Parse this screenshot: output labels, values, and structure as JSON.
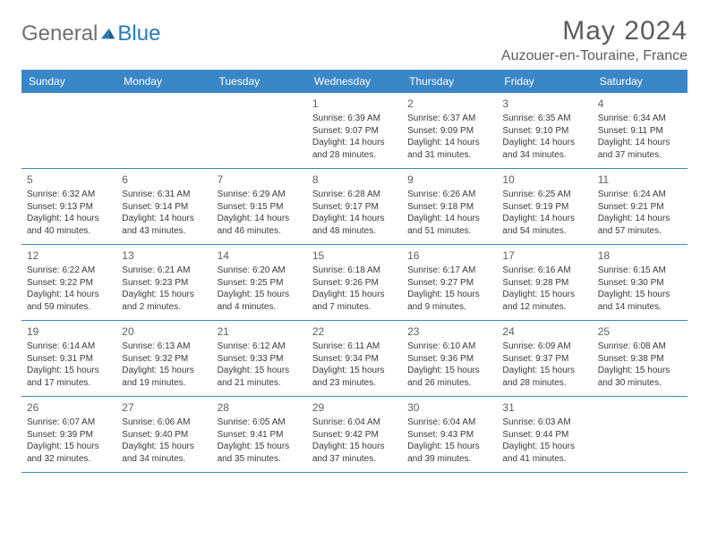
{
  "brand": {
    "part1": "General",
    "part2": "Blue"
  },
  "title": "May 2024",
  "location": "Auzouer-en-Touraine, France",
  "colors": {
    "header_bg": "#3a87c8",
    "header_text": "#ffffff",
    "border": "#3a87c8",
    "text": "#3a3a3a",
    "muted": "#606060",
    "brand_gray": "#6f6f6f",
    "brand_blue": "#2a7ab9",
    "background": "#ffffff"
  },
  "typography": {
    "title_fontsize": 30,
    "location_fontsize": 16,
    "dow_fontsize": 12,
    "daynum_fontsize": 12,
    "body_fontsize": 10
  },
  "days_of_week": [
    "Sunday",
    "Monday",
    "Tuesday",
    "Wednesday",
    "Thursday",
    "Friday",
    "Saturday"
  ],
  "weeks": [
    [
      {
        "n": "",
        "sr": "",
        "ss": "",
        "dl": ""
      },
      {
        "n": "",
        "sr": "",
        "ss": "",
        "dl": ""
      },
      {
        "n": "",
        "sr": "",
        "ss": "",
        "dl": ""
      },
      {
        "n": "1",
        "sr": "Sunrise: 6:39 AM",
        "ss": "Sunset: 9:07 PM",
        "dl": "Daylight: 14 hours and 28 minutes."
      },
      {
        "n": "2",
        "sr": "Sunrise: 6:37 AM",
        "ss": "Sunset: 9:09 PM",
        "dl": "Daylight: 14 hours and 31 minutes."
      },
      {
        "n": "3",
        "sr": "Sunrise: 6:35 AM",
        "ss": "Sunset: 9:10 PM",
        "dl": "Daylight: 14 hours and 34 minutes."
      },
      {
        "n": "4",
        "sr": "Sunrise: 6:34 AM",
        "ss": "Sunset: 9:11 PM",
        "dl": "Daylight: 14 hours and 37 minutes."
      }
    ],
    [
      {
        "n": "5",
        "sr": "Sunrise: 6:32 AM",
        "ss": "Sunset: 9:13 PM",
        "dl": "Daylight: 14 hours and 40 minutes."
      },
      {
        "n": "6",
        "sr": "Sunrise: 6:31 AM",
        "ss": "Sunset: 9:14 PM",
        "dl": "Daylight: 14 hours and 43 minutes."
      },
      {
        "n": "7",
        "sr": "Sunrise: 6:29 AM",
        "ss": "Sunset: 9:15 PM",
        "dl": "Daylight: 14 hours and 46 minutes."
      },
      {
        "n": "8",
        "sr": "Sunrise: 6:28 AM",
        "ss": "Sunset: 9:17 PM",
        "dl": "Daylight: 14 hours and 48 minutes."
      },
      {
        "n": "9",
        "sr": "Sunrise: 6:26 AM",
        "ss": "Sunset: 9:18 PM",
        "dl": "Daylight: 14 hours and 51 minutes."
      },
      {
        "n": "10",
        "sr": "Sunrise: 6:25 AM",
        "ss": "Sunset: 9:19 PM",
        "dl": "Daylight: 14 hours and 54 minutes."
      },
      {
        "n": "11",
        "sr": "Sunrise: 6:24 AM",
        "ss": "Sunset: 9:21 PM",
        "dl": "Daylight: 14 hours and 57 minutes."
      }
    ],
    [
      {
        "n": "12",
        "sr": "Sunrise: 6:22 AM",
        "ss": "Sunset: 9:22 PM",
        "dl": "Daylight: 14 hours and 59 minutes."
      },
      {
        "n": "13",
        "sr": "Sunrise: 6:21 AM",
        "ss": "Sunset: 9:23 PM",
        "dl": "Daylight: 15 hours and 2 minutes."
      },
      {
        "n": "14",
        "sr": "Sunrise: 6:20 AM",
        "ss": "Sunset: 9:25 PM",
        "dl": "Daylight: 15 hours and 4 minutes."
      },
      {
        "n": "15",
        "sr": "Sunrise: 6:18 AM",
        "ss": "Sunset: 9:26 PM",
        "dl": "Daylight: 15 hours and 7 minutes."
      },
      {
        "n": "16",
        "sr": "Sunrise: 6:17 AM",
        "ss": "Sunset: 9:27 PM",
        "dl": "Daylight: 15 hours and 9 minutes."
      },
      {
        "n": "17",
        "sr": "Sunrise: 6:16 AM",
        "ss": "Sunset: 9:28 PM",
        "dl": "Daylight: 15 hours and 12 minutes."
      },
      {
        "n": "18",
        "sr": "Sunrise: 6:15 AM",
        "ss": "Sunset: 9:30 PM",
        "dl": "Daylight: 15 hours and 14 minutes."
      }
    ],
    [
      {
        "n": "19",
        "sr": "Sunrise: 6:14 AM",
        "ss": "Sunset: 9:31 PM",
        "dl": "Daylight: 15 hours and 17 minutes."
      },
      {
        "n": "20",
        "sr": "Sunrise: 6:13 AM",
        "ss": "Sunset: 9:32 PM",
        "dl": "Daylight: 15 hours and 19 minutes."
      },
      {
        "n": "21",
        "sr": "Sunrise: 6:12 AM",
        "ss": "Sunset: 9:33 PM",
        "dl": "Daylight: 15 hours and 21 minutes."
      },
      {
        "n": "22",
        "sr": "Sunrise: 6:11 AM",
        "ss": "Sunset: 9:34 PM",
        "dl": "Daylight: 15 hours and 23 minutes."
      },
      {
        "n": "23",
        "sr": "Sunrise: 6:10 AM",
        "ss": "Sunset: 9:36 PM",
        "dl": "Daylight: 15 hours and 26 minutes."
      },
      {
        "n": "24",
        "sr": "Sunrise: 6:09 AM",
        "ss": "Sunset: 9:37 PM",
        "dl": "Daylight: 15 hours and 28 minutes."
      },
      {
        "n": "25",
        "sr": "Sunrise: 6:08 AM",
        "ss": "Sunset: 9:38 PM",
        "dl": "Daylight: 15 hours and 30 minutes."
      }
    ],
    [
      {
        "n": "26",
        "sr": "Sunrise: 6:07 AM",
        "ss": "Sunset: 9:39 PM",
        "dl": "Daylight: 15 hours and 32 minutes."
      },
      {
        "n": "27",
        "sr": "Sunrise: 6:06 AM",
        "ss": "Sunset: 9:40 PM",
        "dl": "Daylight: 15 hours and 34 minutes."
      },
      {
        "n": "28",
        "sr": "Sunrise: 6:05 AM",
        "ss": "Sunset: 9:41 PM",
        "dl": "Daylight: 15 hours and 35 minutes."
      },
      {
        "n": "29",
        "sr": "Sunrise: 6:04 AM",
        "ss": "Sunset: 9:42 PM",
        "dl": "Daylight: 15 hours and 37 minutes."
      },
      {
        "n": "30",
        "sr": "Sunrise: 6:04 AM",
        "ss": "Sunset: 9:43 PM",
        "dl": "Daylight: 15 hours and 39 minutes."
      },
      {
        "n": "31",
        "sr": "Sunrise: 6:03 AM",
        "ss": "Sunset: 9:44 PM",
        "dl": "Daylight: 15 hours and 41 minutes."
      },
      {
        "n": "",
        "sr": "",
        "ss": "",
        "dl": ""
      }
    ]
  ]
}
